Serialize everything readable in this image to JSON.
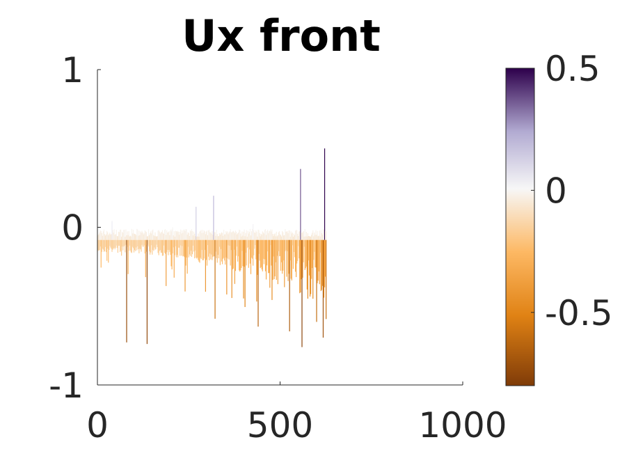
{
  "chart_data": {
    "type": "area",
    "title": "Ux front",
    "xlabel": "",
    "ylabel": "",
    "xlim": [
      0,
      1000
    ],
    "ylim": [
      -1,
      1
    ],
    "x_ticks": [
      "0",
      "500",
      "1000"
    ],
    "y_ticks": [
      "-1",
      "0",
      "1"
    ],
    "grid": false,
    "data_extent_x": [
      0,
      625
    ],
    "baseline": -0.08,
    "positive_spikes": [
      {
        "x": 555,
        "y": 0.37
      },
      {
        "x": 621,
        "y": 0.5
      },
      {
        "x": 318,
        "y": 0.2
      },
      {
        "x": 270,
        "y": 0.13
      },
      {
        "x": 40,
        "y": 0.04
      },
      {
        "x": 205,
        "y": 0.0
      },
      {
        "x": 425,
        "y": 0.02
      }
    ],
    "negative_spikes": [
      {
        "x": 80,
        "y": -0.73
      },
      {
        "x": 135,
        "y": -0.74
      },
      {
        "x": 322,
        "y": -0.58
      },
      {
        "x": 440,
        "y": -0.63
      },
      {
        "x": 525,
        "y": -0.66
      },
      {
        "x": 560,
        "y": -0.76
      },
      {
        "x": 618,
        "y": -0.7
      },
      {
        "x": 600,
        "y": -0.6
      }
    ],
    "colorbar": {
      "range": [
        -0.8,
        0.5
      ],
      "ticks": [
        "-0.5",
        "0",
        "0.5"
      ],
      "colormap": "PuOr",
      "colors": [
        "#7f3b08",
        "#e08214",
        "#fdb863",
        "#f7f7f7",
        "#b2abd2",
        "#2d004b"
      ]
    }
  }
}
